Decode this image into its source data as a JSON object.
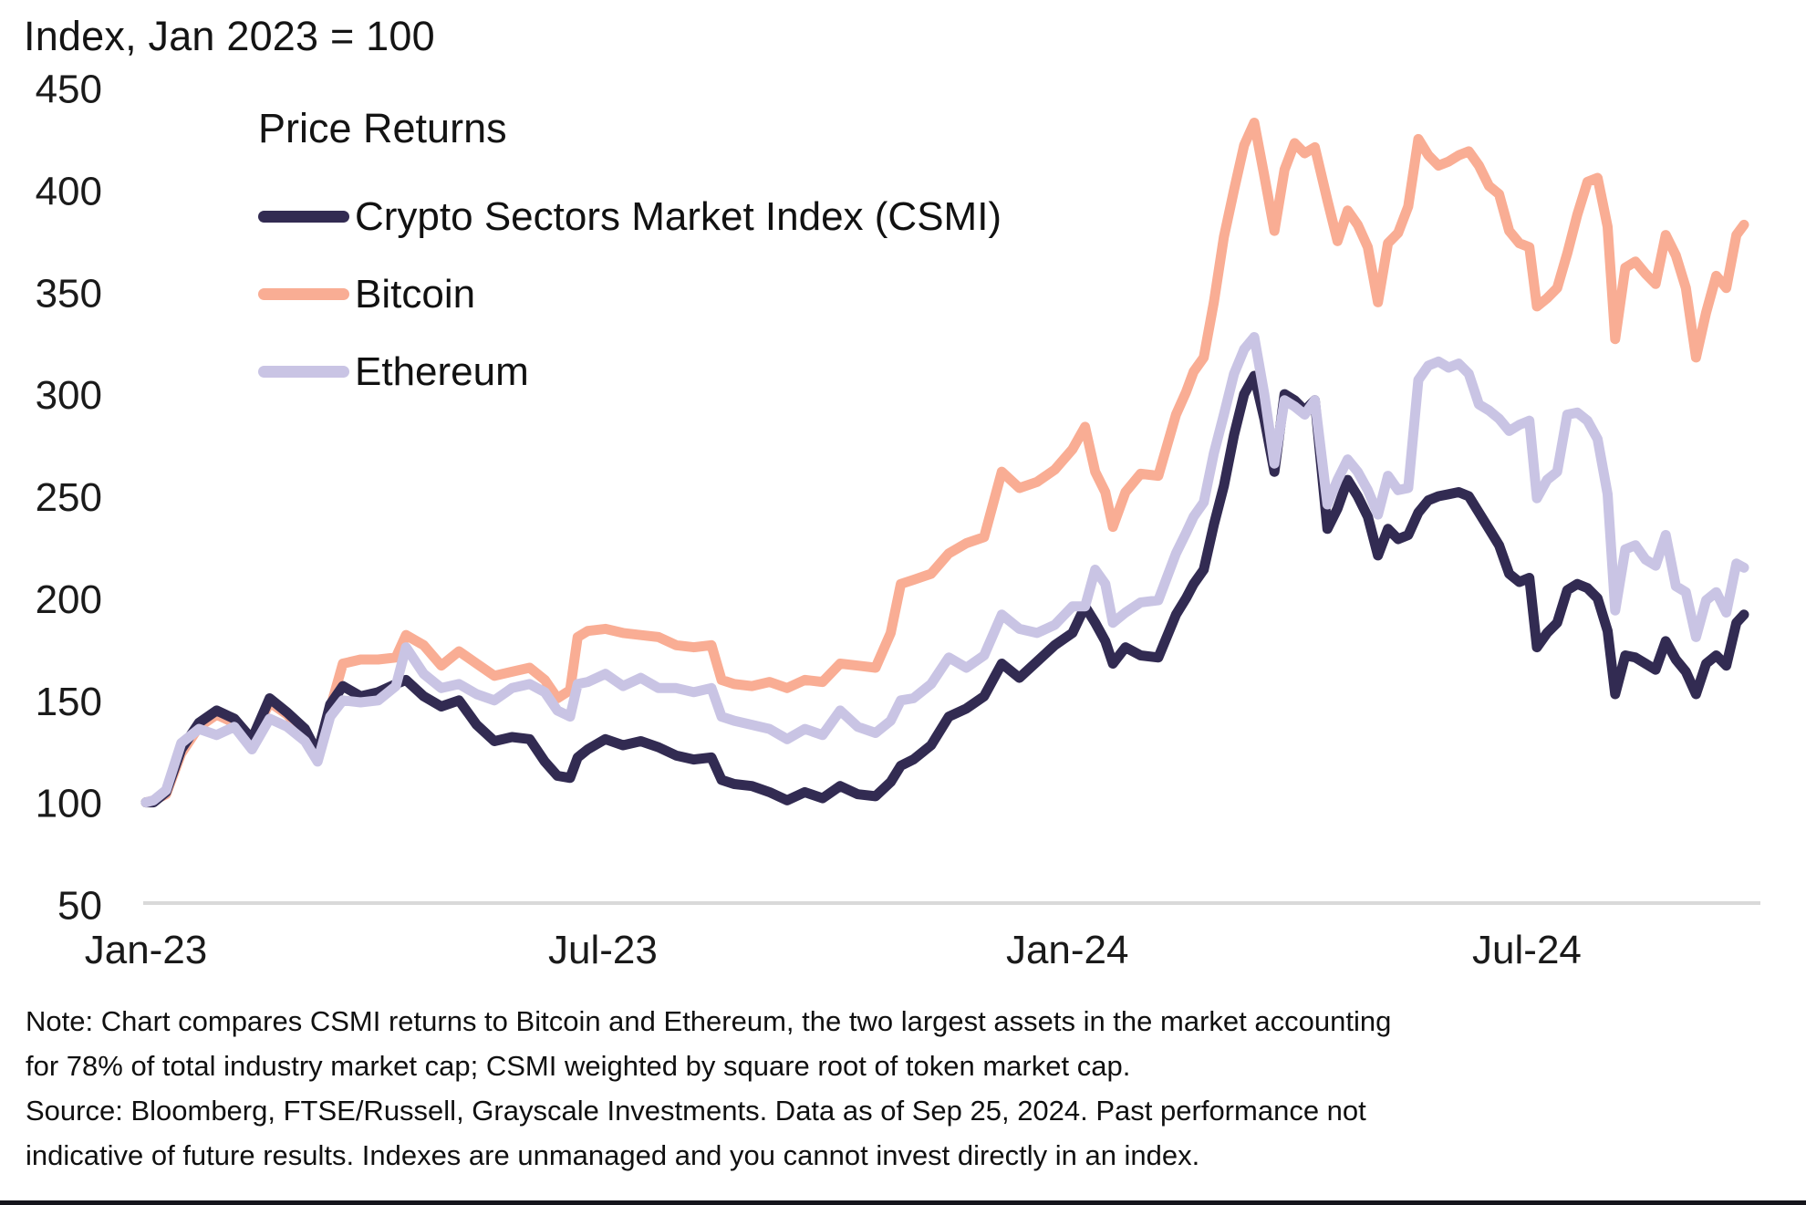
{
  "title": "Index, Jan 2023 = 100",
  "legend": {
    "title": "Price Returns",
    "items": [
      {
        "label": "Crypto Sectors Market Index (CSMI)",
        "color": "#322b52"
      },
      {
        "label": "Bitcoin",
        "color": "#f9ad94"
      },
      {
        "label": "Ethereum",
        "color": "#c9c4e4"
      }
    ]
  },
  "note": {
    "line1": "Note: Chart compares CSMI returns to Bitcoin and Ethereum, the two largest assets in the market accounting for 78% of total industry market cap; CSMI weighted by square root of token market cap.",
    "line2": "Source: Bloomberg, FTSE/Russell, Grayscale Investments. Data as of Sep 25, 2024. Past performance not indicative of future results. Indexes are unmanaged and you cannot invest directly in an index."
  },
  "colors": {
    "csmi": "#322b52",
    "bitcoin": "#f9ad94",
    "ethereum": "#c9c4e4",
    "axis_line": "#d9d9d9",
    "tick_text": "#1a1a1a",
    "footer_rule": "#15151c",
    "background": "#ffffff"
  },
  "chart_data": {
    "type": "line",
    "title": "Index, Jan 2023 = 100",
    "xlabel": "",
    "ylabel": "Index, Jan 2023 = 100",
    "ylim": [
      50,
      450
    ],
    "grid": false,
    "legend_position": "top-left",
    "as_of": "Sep 25, 2024",
    "x_unit": "days since Jan 1, 2023",
    "yticks": [
      450,
      400,
      350,
      300,
      250,
      200,
      150,
      100,
      50
    ],
    "xticks": [
      {
        "day": 0,
        "label": "Jan-23"
      },
      {
        "day": 181,
        "label": "Jul-23"
      },
      {
        "day": 365,
        "label": "Jan-24"
      },
      {
        "day": 547,
        "label": "Jul-24"
      }
    ],
    "days": [
      0,
      3,
      8,
      14,
      21,
      28,
      35,
      42,
      49,
      56,
      63,
      68,
      73,
      78,
      85,
      92,
      99,
      103,
      110,
      117,
      124,
      131,
      138,
      145,
      152,
      158,
      163,
      168,
      171,
      175,
      182,
      189,
      196,
      203,
      210,
      217,
      224,
      228,
      233,
      240,
      247,
      254,
      261,
      268,
      275,
      282,
      289,
      295,
      299,
      304,
      311,
      318,
      325,
      332,
      339,
      346,
      353,
      360,
      367,
      372,
      376,
      380,
      383,
      388,
      394,
      401,
      408,
      412,
      415,
      419,
      423,
      427,
      431,
      435,
      439,
      443,
      447,
      451,
      455,
      459,
      463,
      468,
      472,
      476,
      480,
      484,
      488,
      492,
      496,
      500,
      504,
      508,
      512,
      516,
      520,
      524,
      528,
      532,
      536,
      540,
      544,
      548,
      551,
      555,
      559,
      563,
      567,
      571,
      575,
      579,
      582,
      586,
      590,
      594,
      598,
      602,
      606,
      610,
      614,
      618,
      622,
      626,
      630,
      633
    ],
    "series": [
      {
        "name": "Bitcoin",
        "color": "#f9ad94",
        "values": [
          100,
          101,
          104,
          124,
          137,
          143,
          139,
          131,
          149,
          143,
          134,
          122,
          146,
          168,
          170,
          170,
          171,
          182,
          177,
          167,
          174,
          168,
          162,
          164,
          166,
          160,
          151,
          155,
          181,
          184,
          185,
          183,
          182,
          181,
          177,
          176,
          177,
          160,
          158,
          157,
          159,
          156,
          160,
          159,
          168,
          167,
          166,
          183,
          207,
          209,
          212,
          222,
          227,
          230,
          262,
          254,
          257,
          263,
          273,
          284,
          262,
          252,
          235,
          252,
          261,
          260,
          290,
          301,
          311,
          318,
          345,
          377,
          400,
          422,
          433,
          407,
          380,
          410,
          423,
          418,
          421,
          395,
          375,
          390,
          383,
          372,
          345,
          374,
          379,
          392,
          425,
          417,
          412,
          414,
          417,
          419,
          412,
          402,
          398,
          380,
          374,
          372,
          343,
          347,
          352,
          369,
          388,
          404,
          406,
          382,
          327,
          362,
          365,
          359,
          354,
          378,
          368,
          352,
          318,
          340,
          358,
          352,
          378,
          383
        ]
      },
      {
        "name": "Crypto Sectors Market Index (CSMI)",
        "color": "#322b52",
        "values": [
          100,
          100,
          105,
          126,
          139,
          145,
          141,
          131,
          151,
          144,
          136,
          124,
          148,
          157,
          152,
          154,
          158,
          160,
          152,
          147,
          150,
          138,
          130,
          132,
          131,
          120,
          113,
          112,
          122,
          126,
          131,
          128,
          130,
          127,
          123,
          121,
          122,
          111,
          109,
          108,
          105,
          101,
          105,
          102,
          108,
          104,
          103,
          110,
          118,
          121,
          128,
          142,
          146,
          152,
          168,
          161,
          169,
          177,
          183,
          196,
          188,
          179,
          168,
          176,
          172,
          171,
          192,
          200,
          207,
          214,
          236,
          255,
          280,
          300,
          309,
          288,
          262,
          300,
          297,
          292,
          297,
          234,
          244,
          258,
          250,
          240,
          221,
          234,
          229,
          231,
          242,
          248,
          250,
          251,
          252,
          250,
          242,
          234,
          226,
          212,
          208,
          210,
          176,
          183,
          188,
          204,
          207,
          205,
          200,
          184,
          153,
          172,
          171,
          168,
          165,
          179,
          170,
          164,
          153,
          168,
          172,
          167,
          188,
          192
        ]
      },
      {
        "name": "Ethereum",
        "color": "#c9c4e4",
        "values": [
          100,
          101,
          106,
          129,
          136,
          133,
          137,
          126,
          141,
          137,
          130,
          120,
          142,
          150,
          149,
          150,
          157,
          176,
          163,
          156,
          158,
          153,
          150,
          156,
          158,
          154,
          145,
          142,
          158,
          159,
          163,
          157,
          161,
          156,
          156,
          154,
          156,
          142,
          140,
          138,
          136,
          131,
          136,
          133,
          145,
          137,
          134,
          140,
          150,
          151,
          158,
          171,
          166,
          172,
          192,
          185,
          183,
          187,
          196,
          196,
          214,
          207,
          188,
          193,
          198,
          199,
          222,
          232,
          240,
          247,
          271,
          290,
          310,
          322,
          328,
          300,
          266,
          297,
          294,
          290,
          297,
          246,
          258,
          268,
          262,
          253,
          241,
          260,
          253,
          254,
          307,
          314,
          316,
          313,
          315,
          310,
          295,
          292,
          288,
          282,
          285,
          287,
          249,
          258,
          262,
          290,
          291,
          287,
          278,
          251,
          194,
          224,
          226,
          219,
          216,
          231,
          206,
          203,
          181,
          199,
          203,
          193,
          217,
          215
        ]
      }
    ]
  }
}
